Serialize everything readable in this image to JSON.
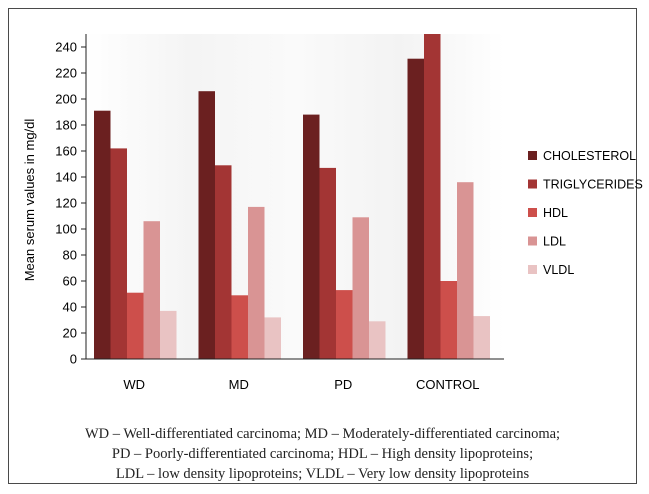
{
  "chart_data": {
    "type": "bar",
    "ylabel": "Mean serum values in mg/dl",
    "xlabel": "",
    "title": "",
    "ylim": [
      0,
      250
    ],
    "yticks": [
      0,
      20,
      40,
      60,
      80,
      100,
      120,
      140,
      160,
      180,
      200,
      220,
      240
    ],
    "grid": false,
    "legend_position": "right",
    "categories": [
      "WD",
      "MD",
      "PD",
      "CONTROL"
    ],
    "series": [
      {
        "name": "CHOLESTEROL",
        "color": "#6b2020",
        "values": [
          191,
          206,
          188,
          231
        ]
      },
      {
        "name": "TRIGLYCERIDES",
        "color": "#a33534",
        "values": [
          162,
          149,
          147,
          250
        ]
      },
      {
        "name": "HDL",
        "color": "#cd4f4b",
        "values": [
          51,
          49,
          53,
          60
        ]
      },
      {
        "name": "LDL",
        "color": "#d99494",
        "values": [
          106,
          117,
          109,
          136
        ]
      },
      {
        "name": "VLDL",
        "color": "#e9c3c3",
        "values": [
          37,
          32,
          29,
          33
        ]
      }
    ]
  },
  "caption": {
    "line1": "WD – Well-differentiated carcinoma; MD – Moderately-differentiated carcinoma;",
    "line2": "PD – Poorly-differentiated carcinoma; HDL – High density lipoproteins;",
    "line3": "LDL – low density lipoproteins; VLDL – Very low density lipoproteins"
  }
}
